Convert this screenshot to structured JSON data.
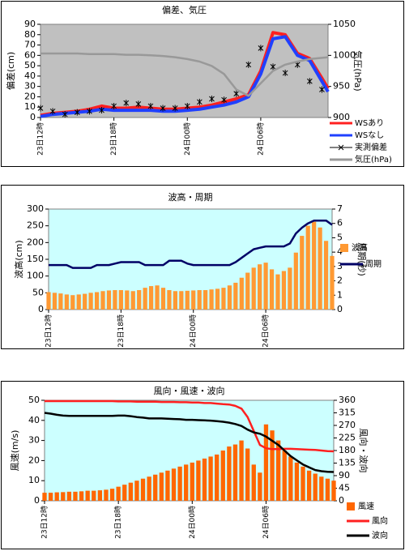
{
  "chart_data": [
    {
      "type": "combo",
      "title": "偏差、気圧",
      "ylabel": "偏差(cm)",
      "y2label": "気圧(hPa)",
      "plot_background": "#c0c0c0",
      "x": [
        0,
        1,
        2,
        3,
        4,
        5,
        6,
        7,
        8,
        9,
        10,
        11,
        12,
        13,
        14,
        15,
        16,
        17,
        18,
        19,
        20,
        21,
        22,
        23,
        23.5
      ],
      "xlim": [
        0,
        23.5
      ],
      "xticks": [
        {
          "value": 0,
          "label": "23日12時"
        },
        {
          "value": 6,
          "label": "23日18時"
        },
        {
          "value": 12,
          "label": "24日00時"
        },
        {
          "value": 18,
          "label": "24日06時"
        }
      ],
      "ylim": [
        0,
        90
      ],
      "yticks": [
        0,
        10,
        20,
        30,
        40,
        50,
        60,
        70,
        80,
        90
      ],
      "y2lim": [
        900,
        1050
      ],
      "y2ticks": [
        900,
        950,
        1000,
        1050
      ],
      "series": [
        {
          "name": "WSあり",
          "type": "line",
          "color": "#ff2020",
          "values": [
            2,
            4,
            5,
            6,
            8,
            11,
            9,
            9,
            10,
            9,
            8,
            8,
            9,
            10,
            12,
            15,
            18,
            22,
            45,
            82,
            80,
            62,
            57,
            38,
            28
          ]
        },
        {
          "name": "WSなし",
          "type": "line",
          "color": "#2040ff",
          "values": [
            1,
            3,
            4,
            5,
            6,
            8,
            7,
            7,
            7,
            7,
            6,
            6,
            7,
            8,
            10,
            12,
            15,
            20,
            42,
            76,
            78,
            60,
            55,
            35,
            25
          ]
        },
        {
          "name": "実測偏差",
          "type": "marker",
          "color": "#000000",
          "values": [
            9,
            6,
            3,
            5,
            6,
            7,
            11,
            14,
            13,
            11,
            9,
            9,
            11,
            15,
            18,
            17,
            23,
            51,
            67,
            49,
            43,
            51,
            35,
            27,
            null
          ]
        },
        {
          "name": "気圧(hPa)",
          "type": "line",
          "axis": "y2",
          "color": "#999999",
          "values": [
            1003,
            1003,
            1003,
            1003,
            1002,
            1002,
            1002,
            1001,
            1001,
            1000,
            999,
            997,
            994,
            990,
            983,
            970,
            945,
            935,
            955,
            975,
            985,
            990,
            994,
            996,
            997
          ]
        }
      ]
    },
    {
      "type": "combo",
      "title": "波高・周期",
      "ylabel": "波高(cm)",
      "y2label": "周期(秒)",
      "plot_background": "#ccffff",
      "x": [
        0,
        0.5,
        1,
        1.5,
        2,
        2.5,
        3,
        3.5,
        4,
        4.5,
        5,
        5.5,
        6,
        6.5,
        7,
        7.5,
        8,
        8.5,
        9,
        9.5,
        10,
        10.5,
        11,
        11.5,
        12,
        12.5,
        13,
        13.5,
        14,
        14.5,
        15,
        15.5,
        16,
        16.5,
        17,
        17.5,
        18,
        18.5,
        19,
        19.5,
        20,
        20.5,
        21,
        21.5,
        22,
        22.5,
        23,
        23.5
      ],
      "xlim": [
        0,
        23.5
      ],
      "xticks": [
        {
          "value": 0,
          "label": "23日12時"
        },
        {
          "value": 6,
          "label": "23日18時"
        },
        {
          "value": 12,
          "label": "24日00時"
        },
        {
          "value": 18,
          "label": "24日06時"
        }
      ],
      "ylim": [
        0,
        300
      ],
      "yticks": [
        0,
        50,
        100,
        150,
        200,
        250,
        300
      ],
      "y2lim": [
        0,
        7
      ],
      "y2ticks": [
        0,
        1,
        2,
        3,
        4,
        5,
        6,
        7
      ],
      "series": [
        {
          "name": "波高",
          "type": "bar",
          "color": "#ff9933",
          "values": [
            52,
            50,
            48,
            45,
            43,
            45,
            47,
            50,
            52,
            55,
            57,
            58,
            58,
            57,
            55,
            58,
            65,
            70,
            72,
            65,
            58,
            55,
            55,
            56,
            57,
            58,
            58,
            60,
            62,
            65,
            72,
            80,
            95,
            110,
            125,
            135,
            140,
            120,
            105,
            115,
            125,
            170,
            220,
            250,
            262,
            245,
            205,
            160
          ]
        },
        {
          "name": "周期",
          "type": "line",
          "axis": "y2",
          "color": "#000066",
          "values": [
            3.1,
            3.1,
            3.1,
            3.1,
            2.9,
            2.9,
            2.9,
            2.9,
            3.1,
            3.1,
            3.1,
            3.2,
            3.3,
            3.3,
            3.3,
            3.3,
            3.1,
            3.1,
            3.1,
            3.1,
            3.4,
            3.4,
            3.4,
            3.2,
            3.1,
            3.1,
            3.1,
            3.1,
            3.1,
            3.1,
            3.1,
            3.3,
            3.6,
            3.9,
            4.2,
            4.3,
            4.4,
            4.4,
            4.4,
            4.4,
            4.6,
            5.3,
            5.7,
            6.0,
            6.2,
            6.2,
            6.2,
            5.9
          ]
        }
      ]
    },
    {
      "type": "combo",
      "title": "風向・風速・波向",
      "ylabel": "風速(m/s)",
      "y2label": "風向・波向",
      "plot_background": "#ccffff",
      "x": [
        0,
        0.5,
        1,
        1.5,
        2,
        2.5,
        3,
        3.5,
        4,
        4.5,
        5,
        5.5,
        6,
        6.5,
        7,
        7.5,
        8,
        8.5,
        9,
        9.5,
        10,
        10.5,
        11,
        11.5,
        12,
        12.5,
        13,
        13.5,
        14,
        14.5,
        15,
        15.5,
        16,
        16.5,
        17,
        17.5,
        18,
        18.5,
        19,
        19.5,
        20,
        20.5,
        21,
        21.5,
        22,
        22.5,
        23,
        23.5
      ],
      "xlim": [
        0,
        23.5
      ],
      "xticks": [
        {
          "value": 0,
          "label": "23日12時"
        },
        {
          "value": 6,
          "label": "23日18時"
        },
        {
          "value": 12,
          "label": "24日00時"
        },
        {
          "value": 18,
          "label": "24日06時"
        }
      ],
      "ylim": [
        0,
        50
      ],
      "yticks": [
        0,
        10,
        20,
        30,
        40,
        50
      ],
      "y2lim": [
        0,
        360
      ],
      "y2ticks": [
        0,
        45,
        90,
        135,
        180,
        225,
        270,
        315,
        360
      ],
      "series": [
        {
          "name": "風速",
          "type": "bar",
          "color": "#ff6600",
          "values": [
            4,
            4,
            4.2,
            4.3,
            4.5,
            4.5,
            4.7,
            5,
            5,
            5.2,
            5.5,
            6,
            7,
            8,
            9,
            10,
            11,
            12,
            13,
            14,
            15,
            16,
            17,
            18,
            19,
            20,
            21,
            22,
            23,
            25,
            27,
            28,
            30,
            26,
            18,
            14,
            38,
            35,
            30,
            25,
            22,
            19,
            17,
            15,
            13.5,
            12,
            11,
            10
          ]
        },
        {
          "name": "風向",
          "type": "line",
          "axis": "y2",
          "color": "#ff2020",
          "values": [
            357,
            357,
            357,
            357,
            357,
            357,
            357,
            357,
            357,
            357,
            357,
            357,
            356,
            356,
            356,
            355,
            355,
            355,
            355,
            354,
            354,
            354,
            353,
            353,
            352,
            352,
            350,
            350,
            348,
            346,
            345,
            340,
            330,
            300,
            250,
            200,
            188,
            185,
            185,
            186,
            186,
            185,
            184,
            183,
            182,
            180,
            178,
            177
          ]
        },
        {
          "name": "波向",
          "type": "line",
          "axis": "y2",
          "color": "#000000",
          "values": [
            315,
            312,
            308,
            305,
            304,
            304,
            304,
            304,
            304,
            304,
            304,
            304,
            305,
            305,
            303,
            300,
            298,
            295,
            295,
            295,
            294,
            293,
            292,
            290,
            290,
            289,
            288,
            287,
            285,
            283,
            280,
            275,
            268,
            255,
            245,
            240,
            230,
            215,
            200,
            180,
            160,
            145,
            130,
            120,
            110,
            106,
            104,
            103
          ]
        }
      ]
    }
  ]
}
